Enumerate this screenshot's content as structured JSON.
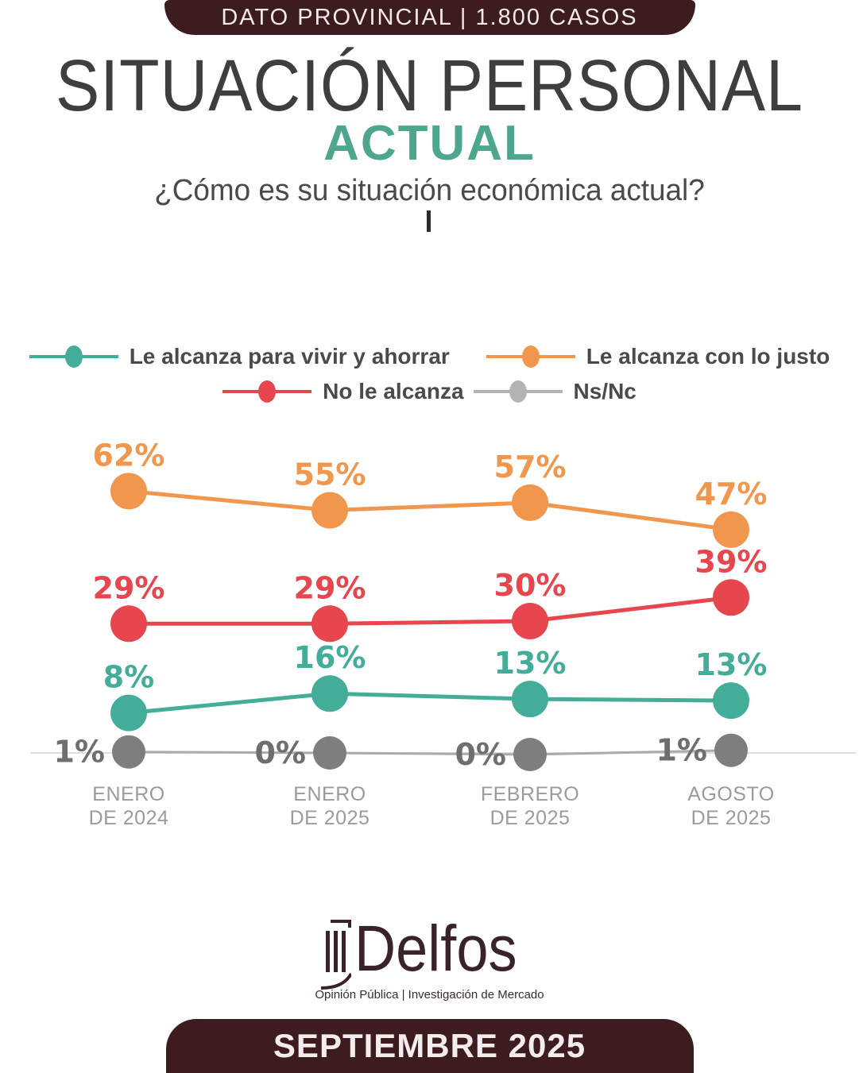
{
  "header": {
    "badge_label": "DATO PROVINCIAL | 1.800 CASOS"
  },
  "title": {
    "line1": "SITUACIÓN PERSONAL",
    "line2": "ACTUAL",
    "subtitle": "¿Cómo es su situación económica actual?"
  },
  "chart_data": {
    "type": "line",
    "categories": [
      "ENERO DE 2024",
      "ENERO DE 2025",
      "FEBRERO DE 2025",
      "AGOSTO DE 2025"
    ],
    "unit": "%",
    "ylim": [
      0,
      70
    ],
    "grid": false,
    "series": [
      {
        "name": "Le alcanza con lo justo",
        "color": "#f0974d",
        "values": [
          62,
          55,
          57,
          47
        ],
        "label_position": "above"
      },
      {
        "name": "No le alcanza",
        "color": "#e8464f",
        "values": [
          29,
          29,
          30,
          39
        ],
        "label_position": "above"
      },
      {
        "name": "Le alcanza para vivir y ahorrar",
        "color": "#43ad99",
        "values": [
          8,
          16,
          13,
          13
        ],
        "label_position": "above"
      },
      {
        "name": "Ns/Nc",
        "color": "#7e7e7e",
        "line_color": "#ababab",
        "label_color": "#6e6e6e",
        "values": [
          1,
          0,
          0,
          1
        ],
        "label_position": "left"
      }
    ],
    "legend": {
      "position": "top",
      "rows": [
        [
          {
            "label": "Le alcanza para vivir y ahorrar",
            "color": "#43ad99"
          },
          {
            "label": "Le alcanza con lo justo",
            "color": "#f0974d"
          }
        ],
        [
          {
            "label": "No le alcanza",
            "color": "#e8464f"
          },
          {
            "label": "Ns/Nc",
            "color": "#b3b3b3"
          }
        ]
      ]
    }
  },
  "footer": {
    "logo_text": "Delfos",
    "tagline": "Opinión Pública | Investigación de Mercado",
    "badge_label": "SEPTIEMBRE 2025"
  },
  "colors": {
    "maroon": "#3c1c1f",
    "accent_teal": "#4fa68f",
    "axis_line": "#dedede",
    "category_label": "#9b9b9b"
  }
}
